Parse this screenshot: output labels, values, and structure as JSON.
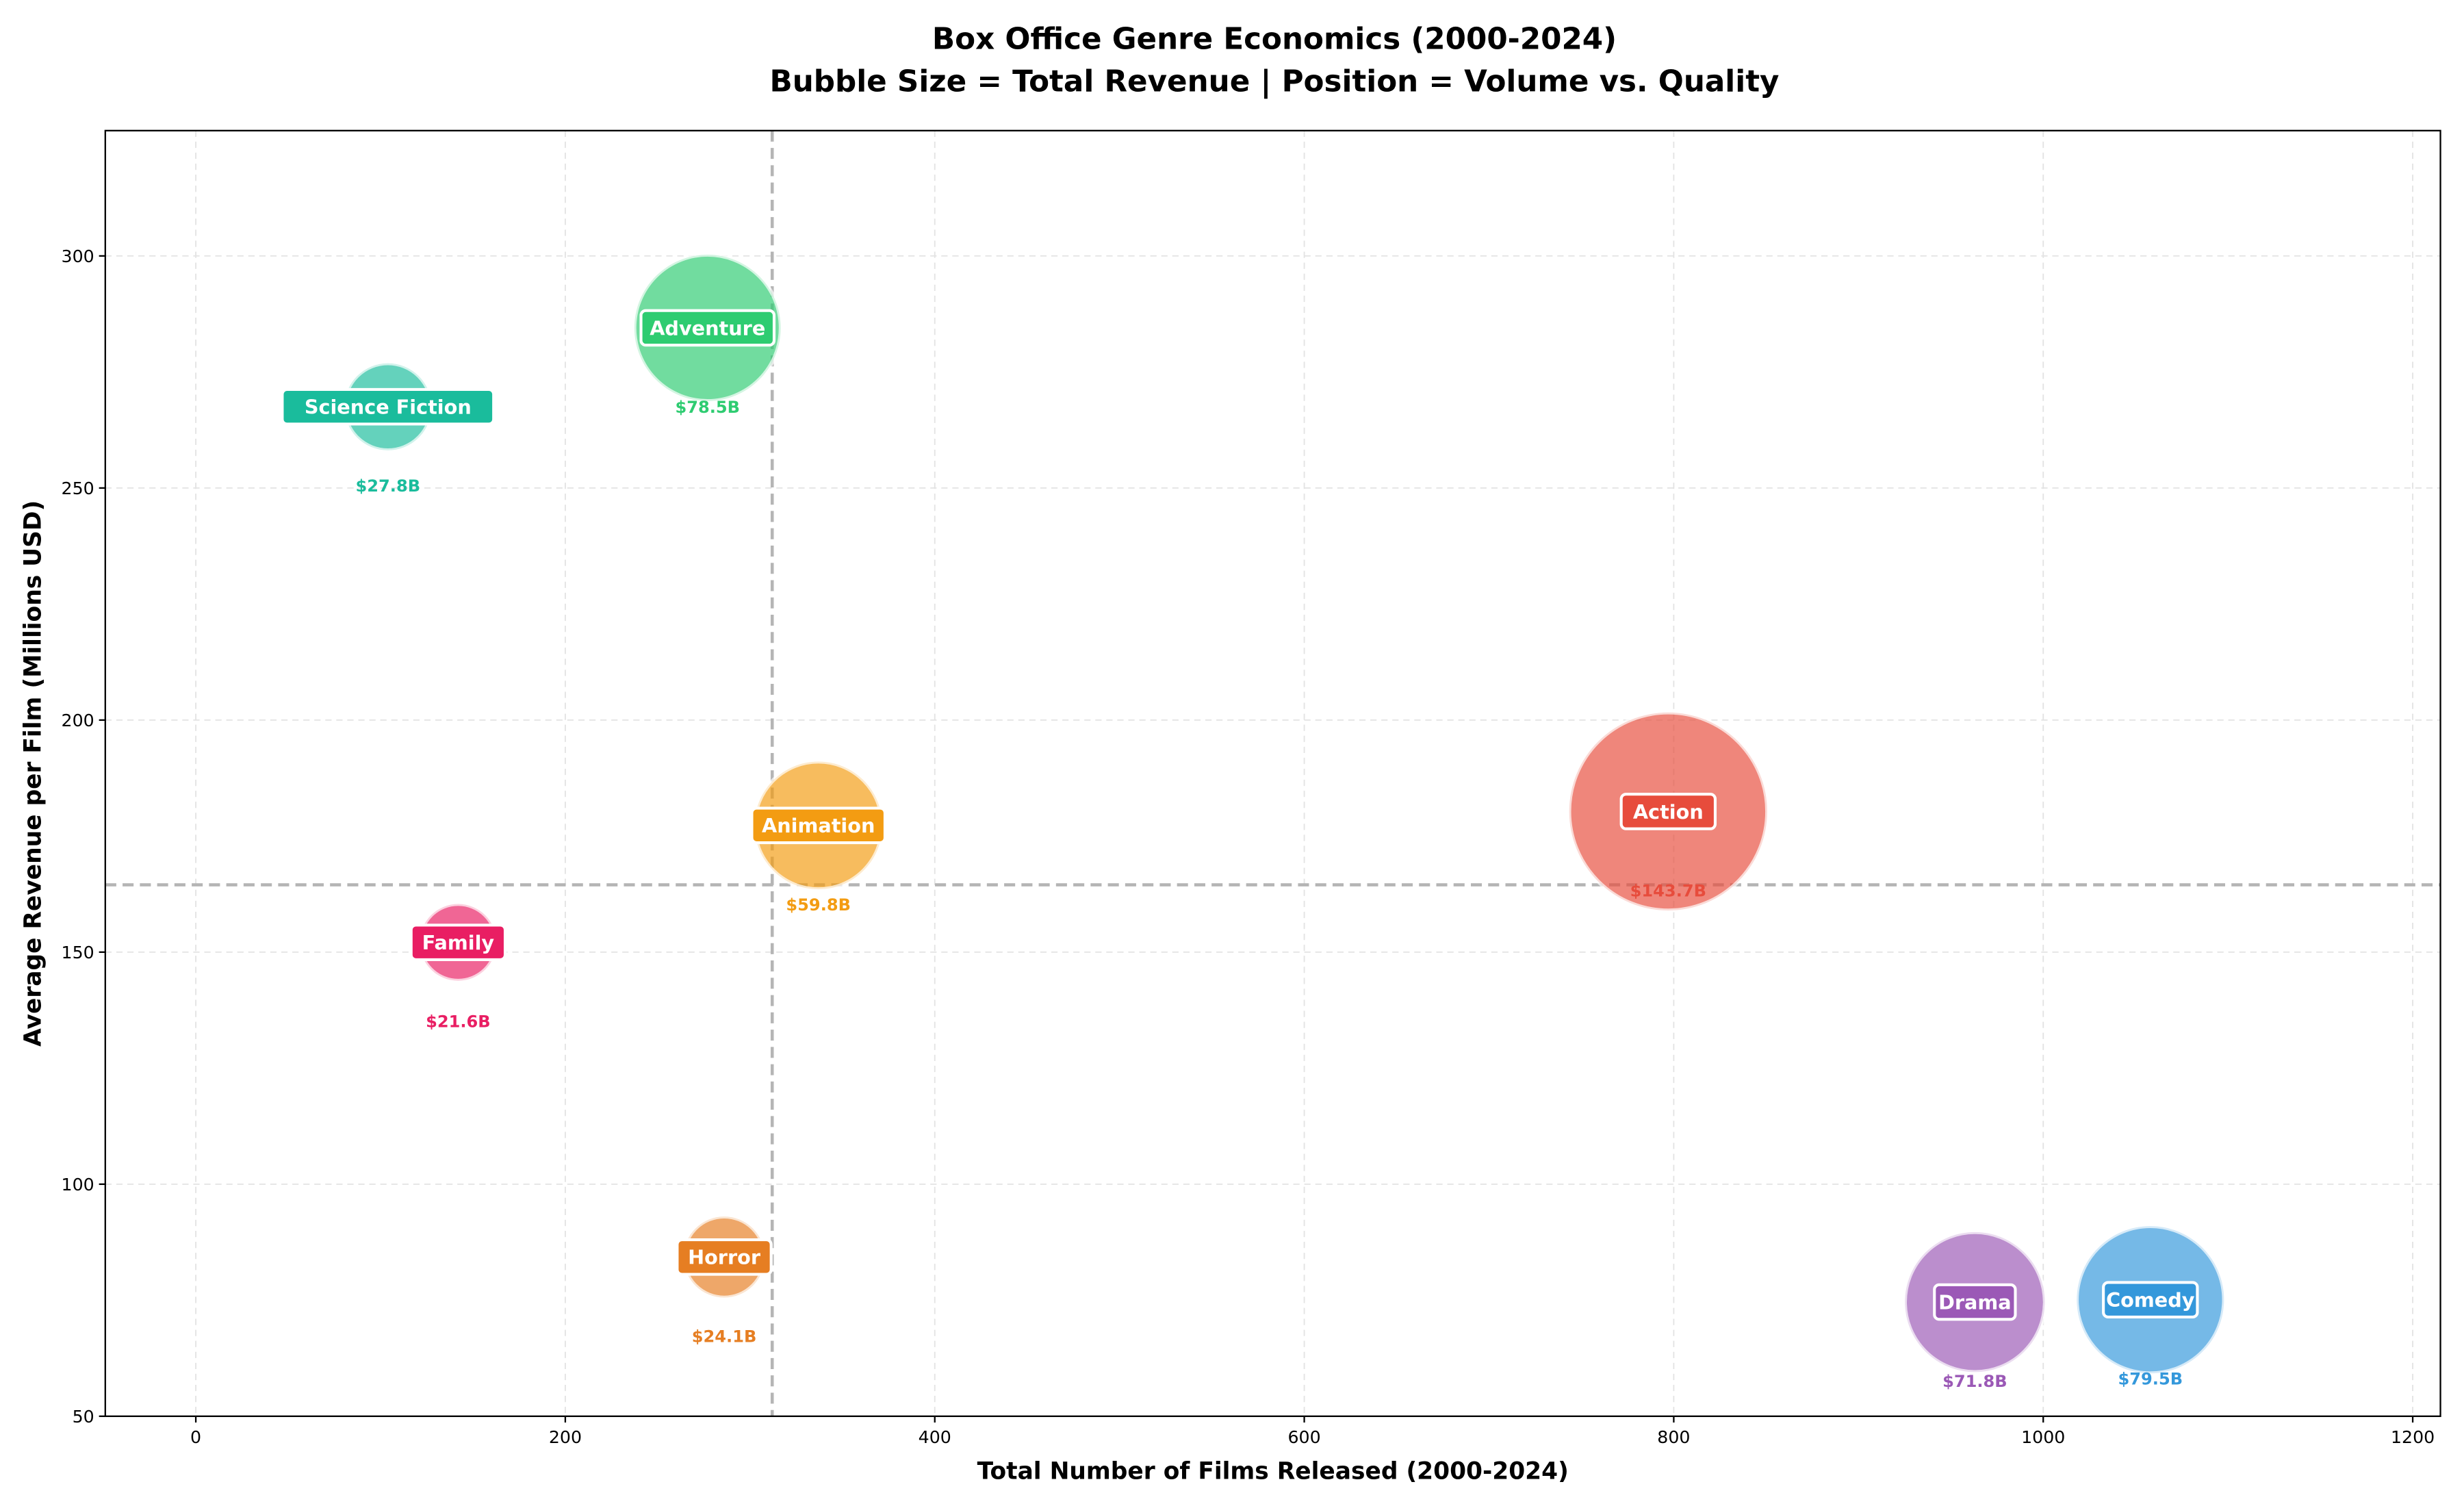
{
  "chart_data": {
    "type": "scatter",
    "title": "Box Office Genre Economics (2000-2024)",
    "subtitle": "Bubble Size = Total Revenue | Position = Volume vs. Quality",
    "xlabel": "Total Number of Films Released (2000-2024)",
    "ylabel": "Average Revenue per Film (Millions USD)",
    "xlim": [
      -49,
      1215
    ],
    "ylim": [
      50,
      327
    ],
    "xticks": [
      0,
      200,
      400,
      600,
      800,
      1000,
      1200
    ],
    "yticks": [
      50,
      100,
      150,
      200,
      250,
      300
    ],
    "grid": true,
    "reference_lines": {
      "median_x": 312,
      "median_y": 164.5
    },
    "points": [
      {
        "genre": "Science Fiction",
        "films": 104,
        "avg_revenue": 267.5,
        "total_label": "$27.8B",
        "total": 27.8,
        "color": "#1abc9c"
      },
      {
        "genre": "Adventure",
        "films": 277,
        "avg_revenue": 284.5,
        "total_label": "$78.5B",
        "total": 78.5,
        "color": "#2ecc71"
      },
      {
        "genre": "Animation",
        "films": 337,
        "avg_revenue": 177.3,
        "total_label": "$59.8B",
        "total": 59.8,
        "color": "#f39c12"
      },
      {
        "genre": "Family",
        "films": 142,
        "avg_revenue": 152.1,
        "total_label": "$21.6B",
        "total": 21.6,
        "color": "#e91e63"
      },
      {
        "genre": "Horror",
        "films": 286,
        "avg_revenue": 84.3,
        "total_label": "$24.1B",
        "total": 24.1,
        "color": "#e67e22"
      },
      {
        "genre": "Action",
        "films": 797,
        "avg_revenue": 180.3,
        "total_label": "$143.7B",
        "total": 143.7,
        "color": "#e74c3c"
      },
      {
        "genre": "Drama",
        "films": 963,
        "avg_revenue": 74.6,
        "total_label": "$71.8B",
        "total": 71.8,
        "color": "#9b59b6"
      },
      {
        "genre": "Comedy",
        "films": 1058,
        "avg_revenue": 75.1,
        "total_label": "$79.5B",
        "total": 79.5,
        "color": "#3498db"
      }
    ]
  }
}
